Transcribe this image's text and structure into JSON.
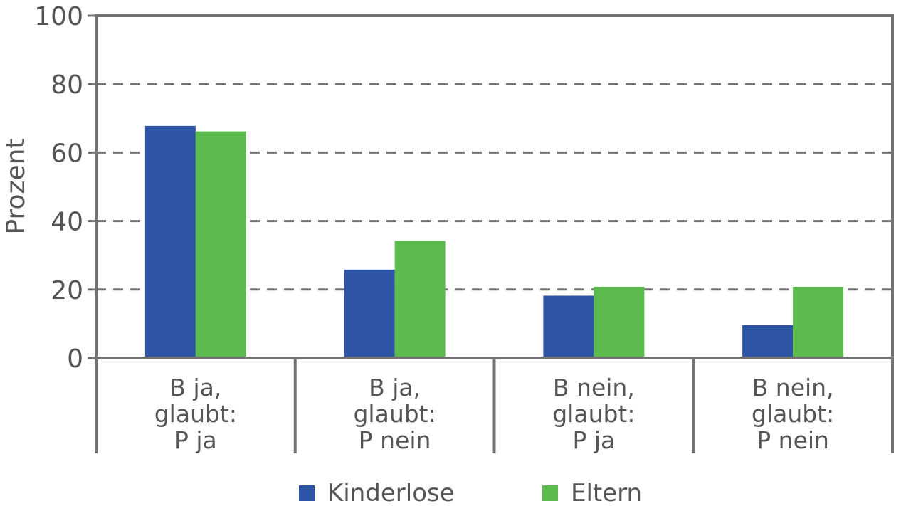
{
  "chart_data": {
    "type": "bar",
    "categories": [
      [
        "B ja,",
        "glaubt:",
        "P ja"
      ],
      [
        "B ja,",
        "glaubt:",
        "P nein"
      ],
      [
        "B nein,",
        "glaubt:",
        "P ja"
      ],
      [
        "B nein,",
        "glaubt:",
        "P nein"
      ]
    ],
    "series": [
      {
        "name": "Kinderlose",
        "color": "#2E55A5",
        "values": [
          67.8,
          25.8,
          18.2,
          9.6
        ]
      },
      {
        "name": "Eltern",
        "color": "#5BBB4C",
        "values": [
          66.2,
          34.2,
          20.8,
          20.8
        ]
      }
    ],
    "title": "",
    "xlabel": "",
    "ylabel": "Prozent",
    "ylim": [
      0,
      100
    ],
    "yticks": [
      0,
      20,
      40,
      60,
      80,
      100
    ],
    "grid": "horizontal-dashed",
    "legend": "bottom"
  }
}
